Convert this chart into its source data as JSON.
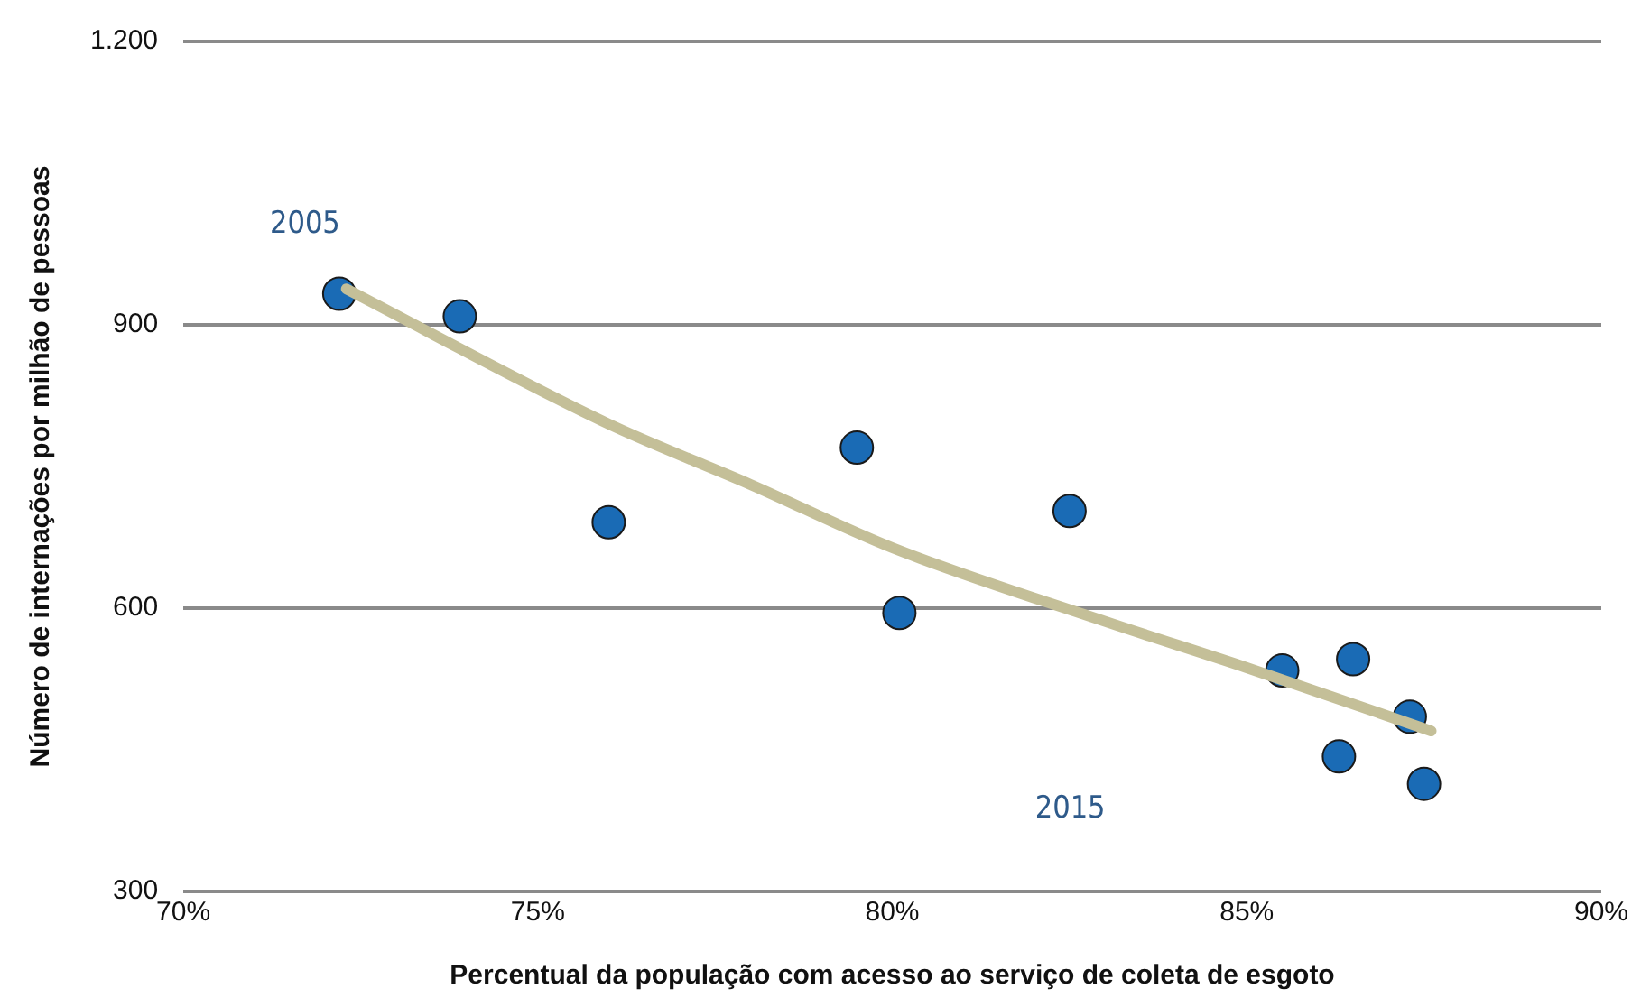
{
  "chart_data": {
    "type": "scatter",
    "xlabel": "Percentual da população com acesso ao serviço de coleta de esgoto",
    "ylabel": "Número de internações por milhão de pessoas",
    "xlim": [
      70,
      90
    ],
    "xticks": [
      {
        "value": 70,
        "label": "70%"
      },
      {
        "value": 75,
        "label": "75%"
      },
      {
        "value": 80,
        "label": "80%"
      },
      {
        "value": 85,
        "label": "85%"
      },
      {
        "value": 90,
        "label": "90%"
      }
    ],
    "ylim": [
      300,
      1200
    ],
    "yticks": [
      300,
      600,
      900,
      {
        "value": 1200,
        "label": "1.200"
      }
    ],
    "grid": "y",
    "legend": false,
    "marker": "circle",
    "series": [
      {
        "type": "scatter",
        "color": "#1a6bb5",
        "x": [
          72.2,
          73.9,
          76.0,
          79.5,
          80.1,
          82.5,
          85.5,
          86.5,
          86.3,
          87.3,
          87.5
        ],
        "values": [
          933,
          909,
          691,
          770,
          595,
          703,
          534,
          546,
          443,
          485,
          414
        ]
      },
      {
        "type": "line",
        "color": "#c4bf98",
        "marker": "none",
        "x": [
          72.3,
          76.0,
          78.0,
          80.0,
          83.0,
          85.0,
          87.6
        ],
        "values": [
          938,
          795,
          731,
          664,
          586,
          537,
          470
        ]
      }
    ],
    "annotations": [
      "2005",
      "2015"
    ]
  }
}
